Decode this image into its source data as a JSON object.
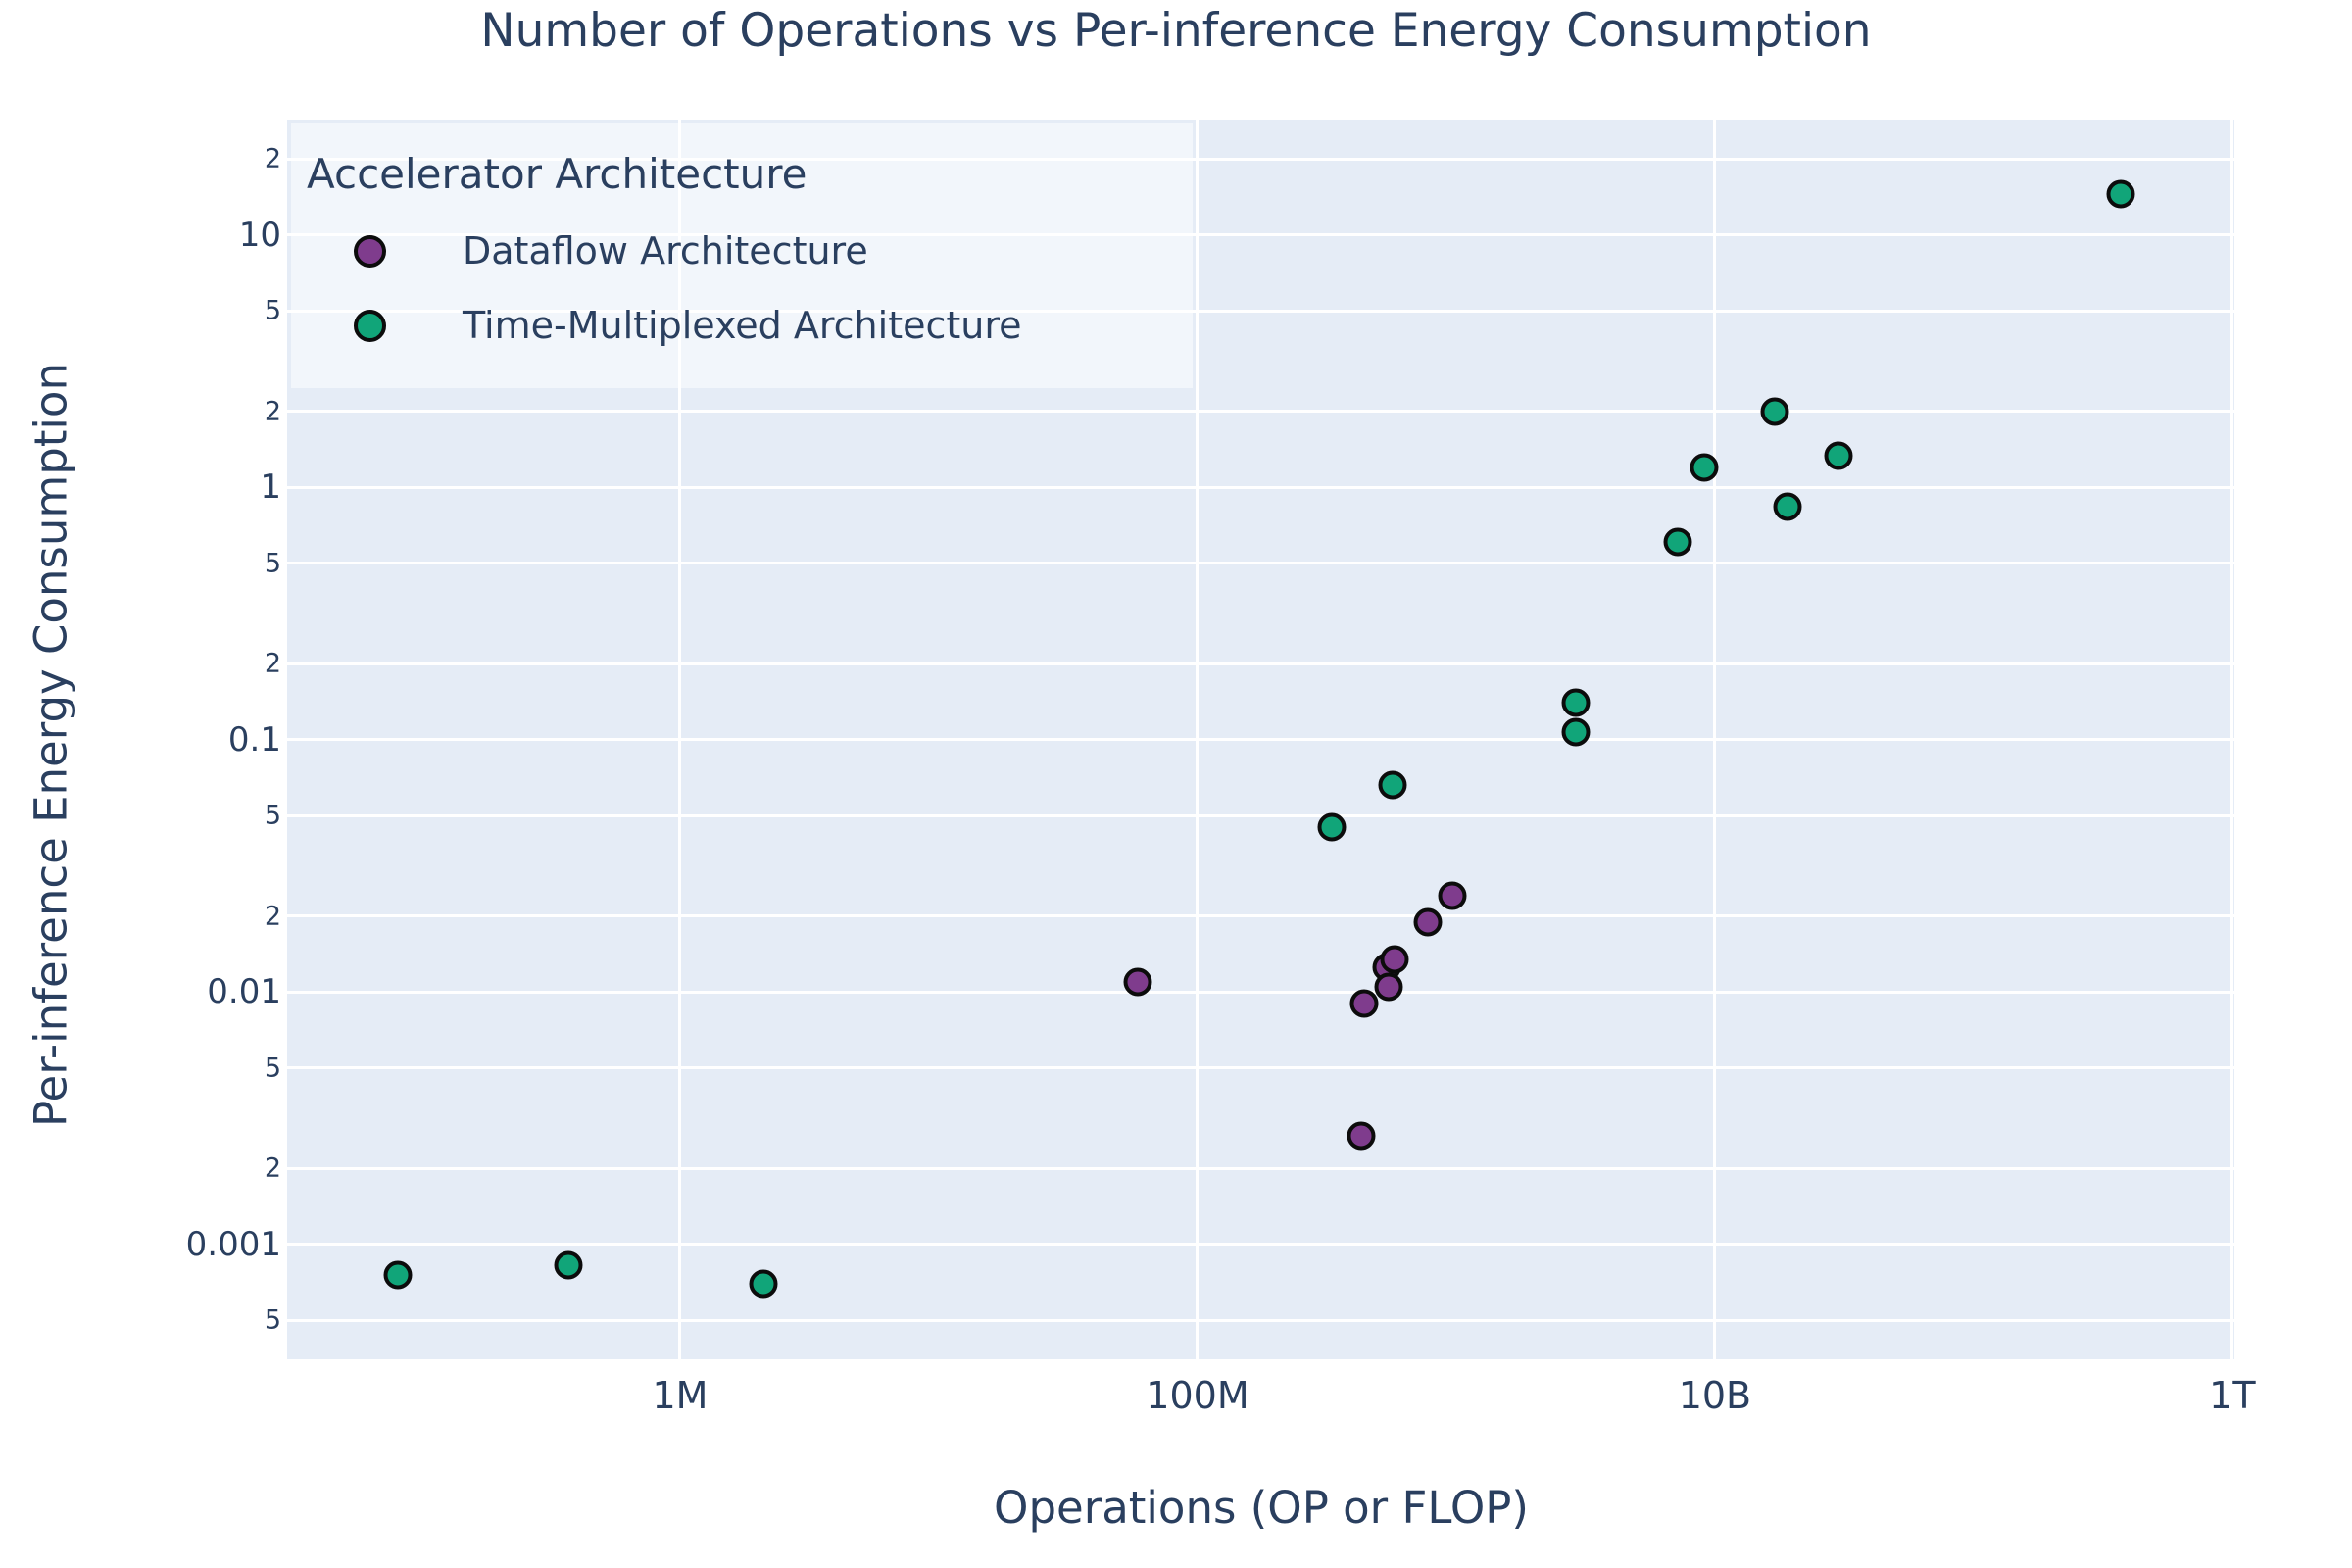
{
  "figure": {
    "title": "Number of Operations vs Per-inference Energy Consumption",
    "x_axis_title": "Operations (OP or FLOP)",
    "y_axis_title": "Per-inference Energy Consumption",
    "legend_title": "Accelerator Architecture"
  },
  "colors": {
    "text": "#2a3f5f",
    "plot_background": "#e5ecf6",
    "gridline": "#ffffff",
    "marker_outline": "#0c0c0c",
    "dataflow": "#7f3c8d",
    "time_multiplexed": "#11a579"
  },
  "chart_data": {
    "type": "scatter",
    "title": "Number of Operations vs Per-inference Energy Consumption",
    "xlabel": "Operations (OP or FLOP)",
    "ylabel": "Per-inference Energy Consumption",
    "x_scale": "log",
    "y_scale": "log",
    "xlim_log10": [
      4.481,
      12.008
    ],
    "ylim_log10": [
      -3.455,
      1.4575
    ],
    "grid": true,
    "legend_position": "top-left",
    "legend_title": "Accelerator Architecture",
    "x_ticks": [
      {
        "value": 1000000.0,
        "label": "1M"
      },
      {
        "value": 100000000.0,
        "label": "100M"
      },
      {
        "value": 10000000000.0,
        "label": "10B"
      },
      {
        "value": 1000000000000.0,
        "label": "1T"
      }
    ],
    "y_ticks": [
      {
        "value": 20,
        "label": "2",
        "minor": true
      },
      {
        "value": 10,
        "label": "10",
        "minor": false
      },
      {
        "value": 5,
        "label": "5",
        "minor": true
      },
      {
        "value": 2,
        "label": "2",
        "minor": true
      },
      {
        "value": 1,
        "label": "1",
        "minor": false
      },
      {
        "value": 0.5,
        "label": "5",
        "minor": true
      },
      {
        "value": 0.2,
        "label": "2",
        "minor": true
      },
      {
        "value": 0.1,
        "label": "0.1",
        "minor": false
      },
      {
        "value": 0.05,
        "label": "5",
        "minor": true
      },
      {
        "value": 0.02,
        "label": "2",
        "minor": true
      },
      {
        "value": 0.01,
        "label": "0.01",
        "minor": false
      },
      {
        "value": 0.005,
        "label": "5",
        "minor": true
      },
      {
        "value": 0.002,
        "label": "2",
        "minor": true
      },
      {
        "value": 0.001,
        "label": "0.001",
        "minor": false
      },
      {
        "value": 0.0005,
        "label": "5",
        "minor": true
      }
    ],
    "series": [
      {
        "name": "Dataflow Architecture",
        "color": "#7f3c8d",
        "points": [
          [
            59000000.0,
            0.011
          ],
          [
            430000000.0,
            0.0027
          ],
          [
            440000000.0,
            0.009
          ],
          [
            540000000.0,
            0.0125
          ],
          [
            550000000.0,
            0.0105
          ],
          [
            580000000.0,
            0.0135
          ],
          [
            780000000.0,
            0.019
          ],
          [
            970000000.0,
            0.024
          ]
        ]
      },
      {
        "name": "Time-Multiplexed Architecture",
        "color": "#11a579",
        "points": [
          [
            81000.0,
            0.00076
          ],
          [
            370000.0,
            0.00083
          ],
          [
            2100000.0,
            0.0007
          ],
          [
            330000000.0,
            0.045
          ],
          [
            570000000.0,
            0.066
          ],
          [
            2900000000.0,
            0.107
          ],
          [
            2900000000.0,
            0.14
          ],
          [
            7200000000.0,
            0.61
          ],
          [
            9100000000.0,
            1.2
          ],
          [
            17000000000.0,
            2.0
          ],
          [
            19000000000.0,
            0.84
          ],
          [
            30000000000.0,
            1.33
          ],
          [
            370000000000.0,
            14.5
          ]
        ]
      }
    ]
  }
}
